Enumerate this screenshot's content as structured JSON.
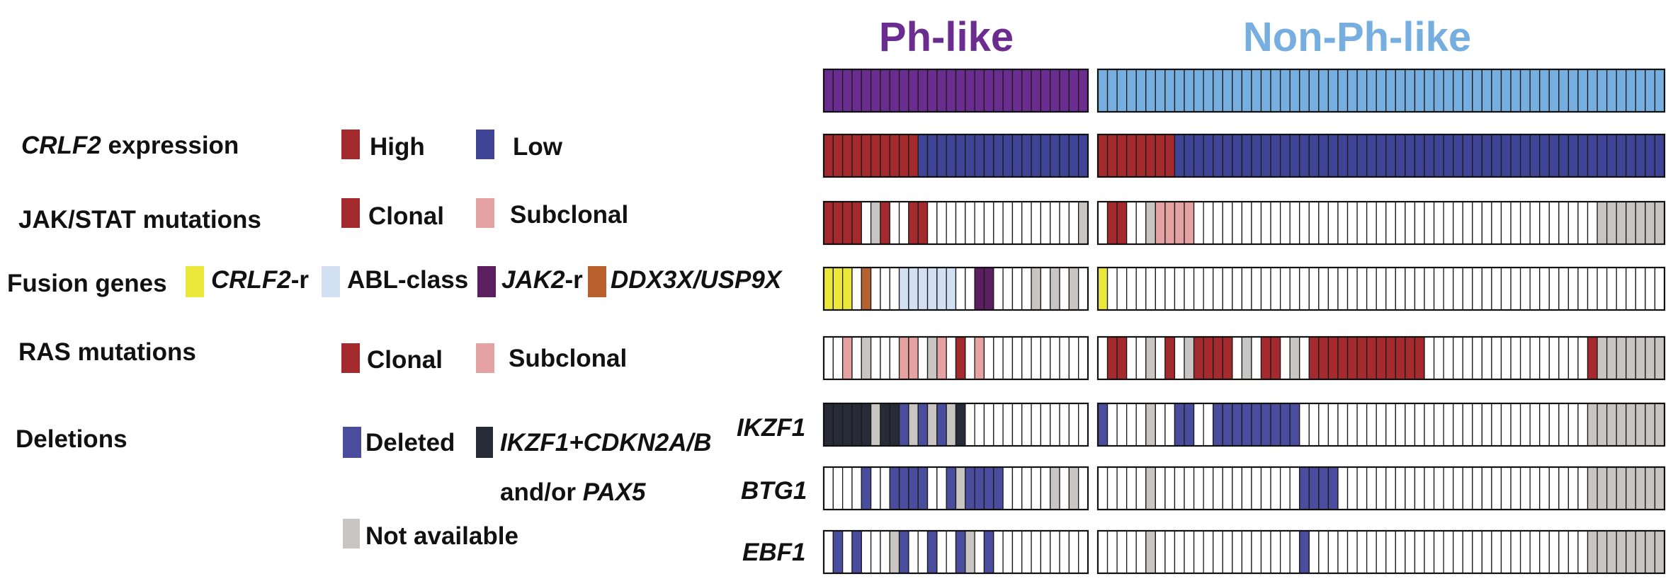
{
  "colors": {
    "ph_like": "#6A2C8E",
    "non_ph_like": "#76AEDF",
    "high": "#A42A2E",
    "low": "#3F4497",
    "clonal": "#A42A2E",
    "subclonal": "#E4A3A2",
    "crlf2_r": "#ECE83A",
    "abl_class": "#D2E0F2",
    "jak2_r": "#5B1F5F",
    "ddx3x": "#B7602C",
    "deleted": "#4A4D9E",
    "combo": "#262B37",
    "not_available": "#C9C5C3",
    "empty": "#ffffff"
  },
  "groups": {
    "ph_like": {
      "label": "Ph-like",
      "n": 28
    },
    "non_ph_like": {
      "label": "Non-Ph-like",
      "n": 59
    }
  },
  "rows": {
    "crlf2": {
      "label_gene": "CRLF2",
      "label_rest": " expression"
    },
    "jakstat": {
      "label": "JAK/STAT mutations"
    },
    "fusion": {
      "label": "Fusion genes"
    },
    "ras": {
      "label": "RAS mutations"
    },
    "deletions": {
      "label": "Deletions"
    },
    "ikzf1": {
      "label": "IKZF1"
    },
    "btg1": {
      "label": "BTG1"
    },
    "ebf1": {
      "label": "EBF1"
    }
  },
  "legend": {
    "high": "High",
    "low": "Low",
    "clonal": "Clonal",
    "subclonal": "Subclonal",
    "crlf2_gene": "CRLF2",
    "crlf2_suffix": "-r",
    "abl": "ABL-class",
    "jak2_gene": "JAK2",
    "jak2_suffix": "-r",
    "ddx3x": "DDX3X/USP9X",
    "ras_clonal": "Clonal",
    "ras_subclonal": "Subclonal",
    "deleted": "Deleted",
    "combo_line1": "IKZF1+CDKN2A/B",
    "combo_line2_prefix": "and/or ",
    "combo_line2_gene": "PAX5",
    "not_available": "Not available"
  },
  "matrix": {
    "legend_codes": {
      "E": "empty",
      "H": "high",
      "L": "low",
      "C": "clonal",
      "S": "subclonal",
      "Y": "crlf2_r",
      "A": "abl_class",
      "J": "jak2_r",
      "D": "ddx3x",
      "X": "deleted",
      "K": "combo",
      "N": "not_available",
      "P": "ph_like",
      "Q": "non_ph_like"
    },
    "ph_like": {
      "group": "PPPPPPPPPPPPPPPPPPPPPPPPPPPP",
      "crlf2": "HHHHHHHHHHLLLLLLLLLLLLLLLLLL",
      "jakstat": "CCCCENCEECCEEEEEEEEEEEEEEEEN",
      "fusion": "YYYEDEEEAAAAAAEEJJEEEENENENE",
      "ras": "EESENEEESSENSECESEEEEEEEEEEE",
      "ikzf1": "KKKKKNKKXNXNXNKEEEEEEEEEEEEE",
      "btg1": "EEEEXEEXXXXEEXNXXXXEEEEENENE",
      "ebf1": "EXEXEEENXEEXEEXNEXEEEEEEEEEE"
    },
    "non_ph_like": {
      "group": "QQQQQQQQQQQQQQQQQQQQQQQQQQQQQQQQQQQQQQQQQQQQQQQQQQQQQQQQQQQ",
      "crlf2": "HHHHHHHHLLLLLLLLLLLLLLLLLLLLLLLLLLLLLLLLLLLLLLLLLLLLLLLLLLL",
      "jakstat": "ECCEENSSSSEEEEEEEEEEEEEEEEEEEEEEEEEEEEEEEEEEEEEEEEEENNNNNNN",
      "fusion": "YEEEEEEEEEEEEEEEEEEEEEEEEEEEEEEEEEEEEEEEEEEEEEEEEEEEEEEEEEE",
      "ras": "ECCEENECENCCCCENECCENECCCCCCCCCCCCEEEEEEEEEEEEEEEEECNNNNNNN",
      "ikzf1": "XEEEENEEXXEEXXXXXXXXXEEEEEEEEEEEEEEEEEEEEEEEEEEEEEENNNNNNNN",
      "btg1": "EEEEENEEEEEEEEEEEEEEEXXXXEEEEEEEEEEEEEEEEEEEEEEEEEENNNNNNNN",
      "ebf1": "EEEEENEEEEEEEEEEEEEEEXEEEEEEEEEEEEEEEEEEEEEEEEEEEEENNNNNNNN"
    }
  }
}
